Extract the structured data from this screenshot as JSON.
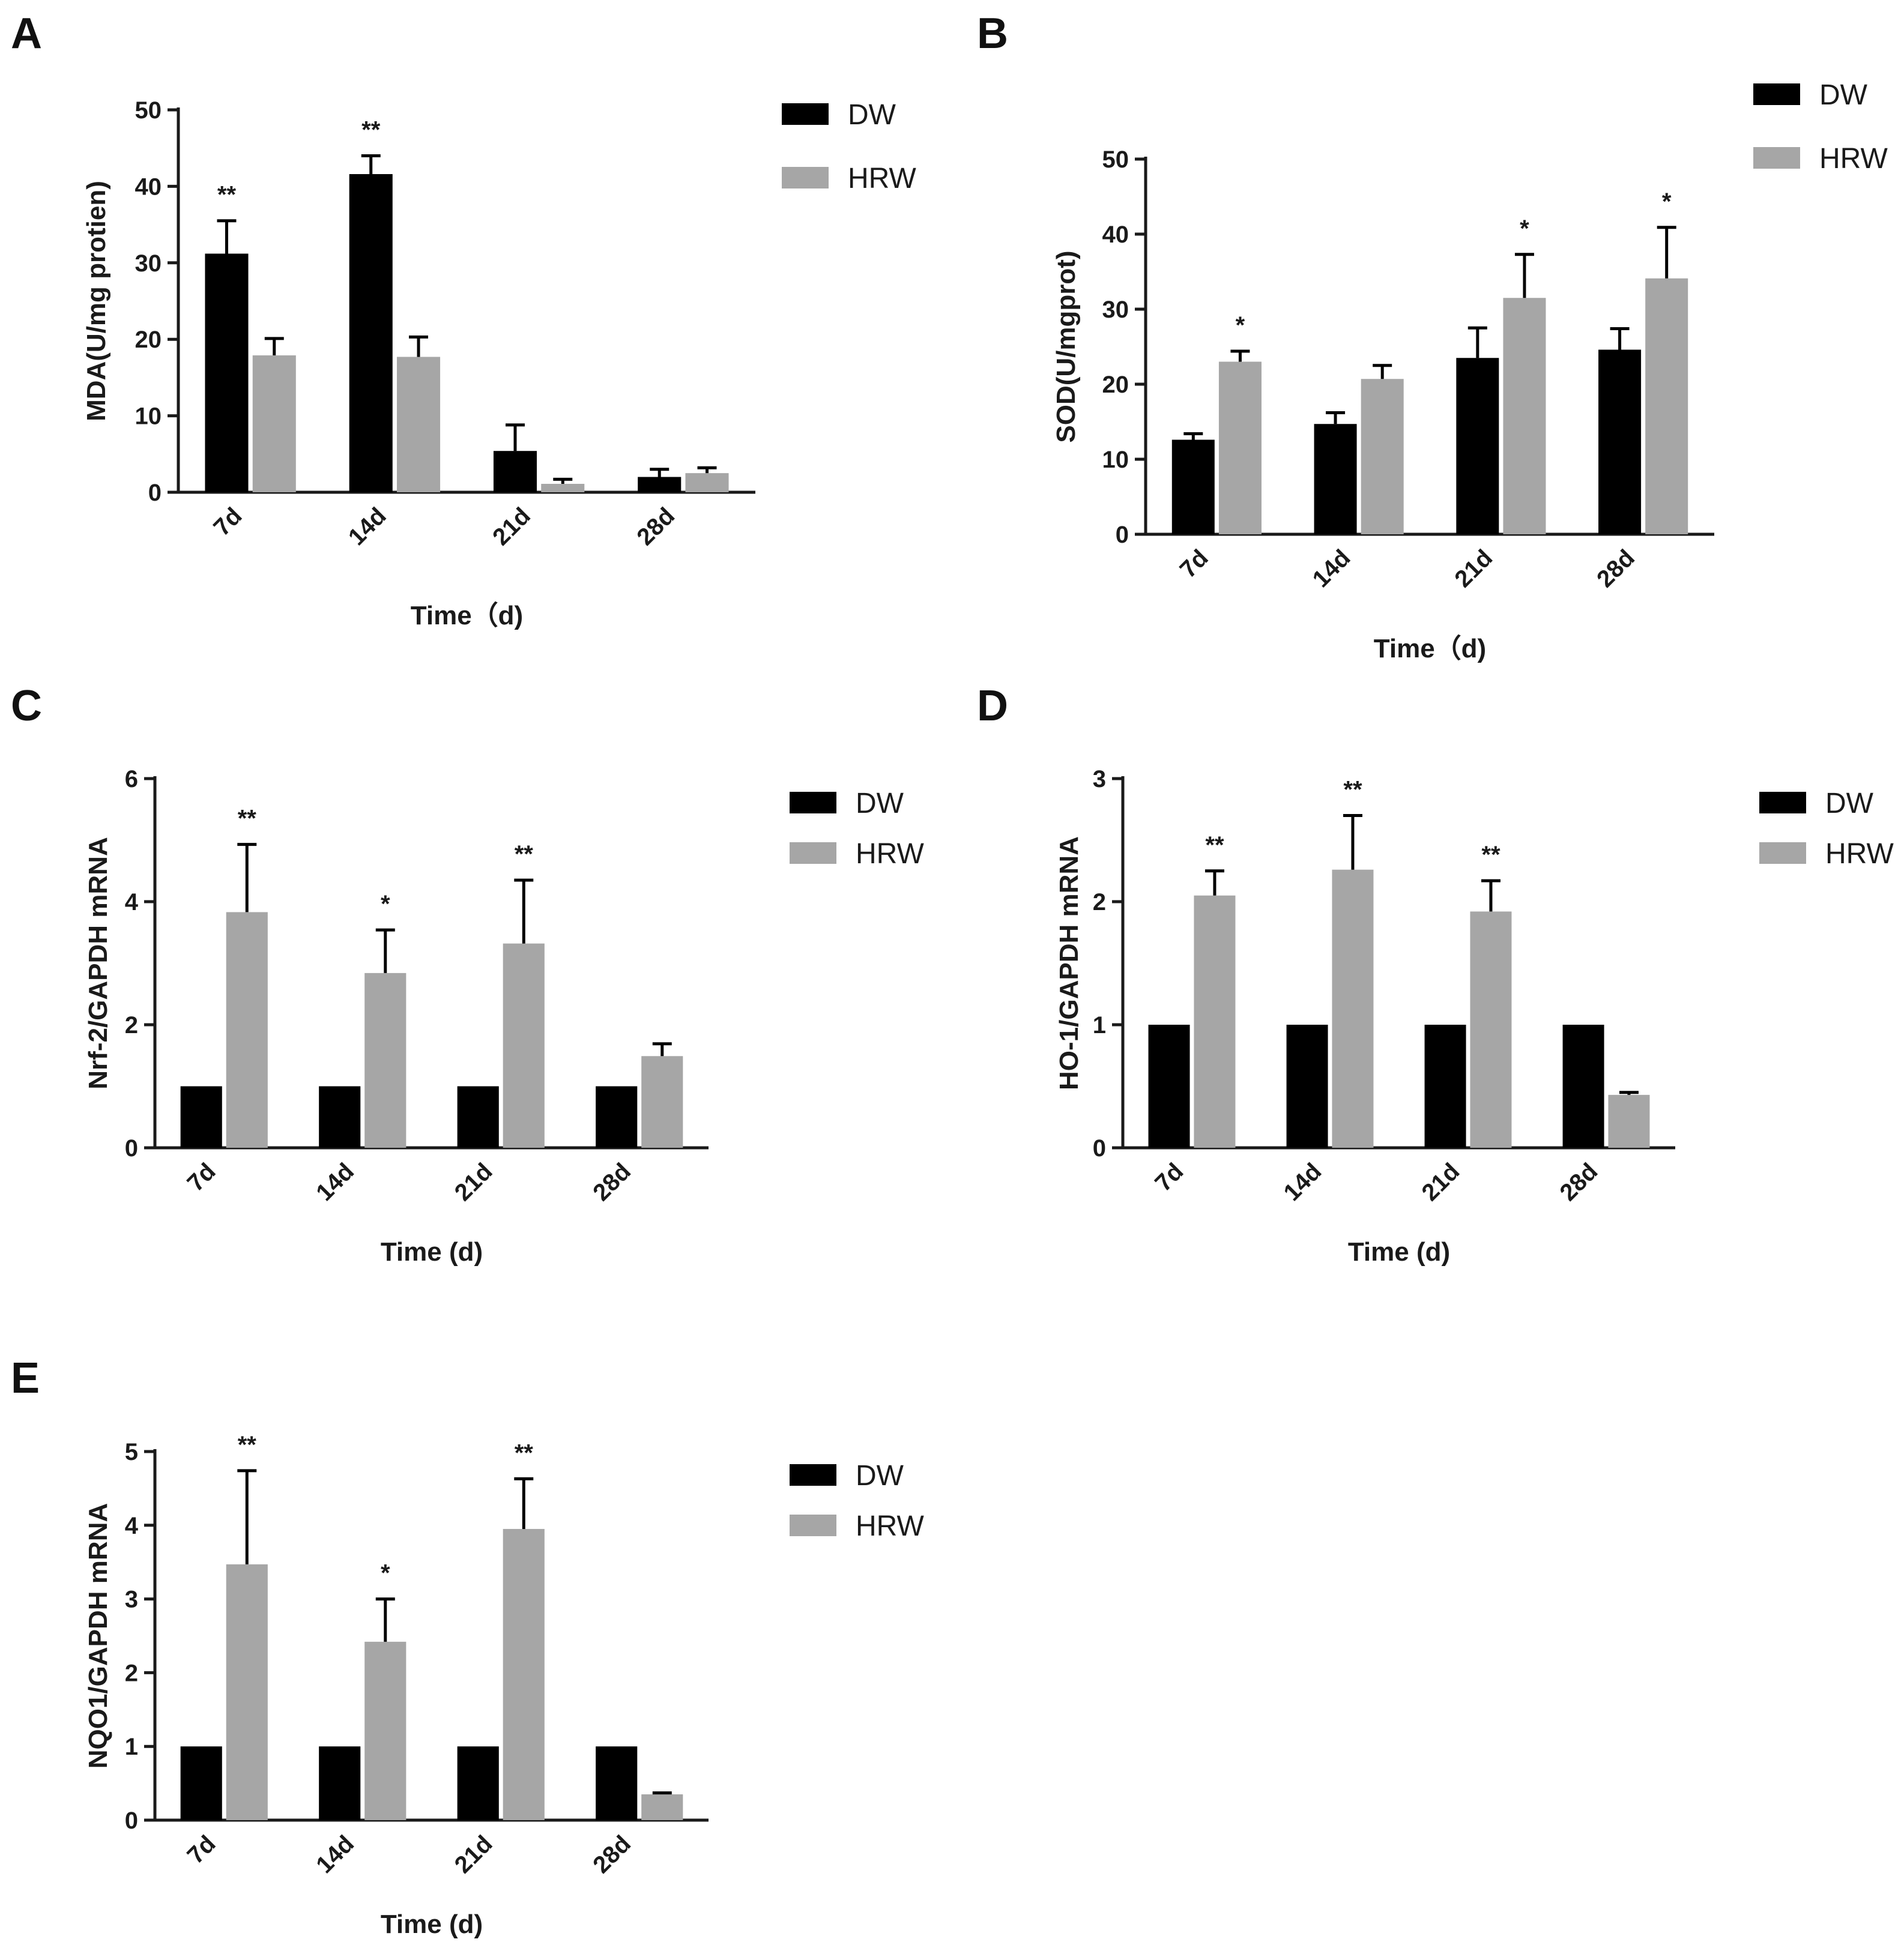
{
  "colors": {
    "DW": "#000000",
    "HRW": "#a6a6a6",
    "axis": "#1a1a1a"
  },
  "chart_data": [
    {
      "panel": "A",
      "type": "bar",
      "categories": [
        "7d",
        "14d",
        "21d",
        "28d"
      ],
      "xlabel": "Time（d)",
      "ylabel": "MDA(U/mg protien)",
      "ylim": [
        0,
        50
      ],
      "yticks": [
        "0",
        "10",
        "20",
        "30",
        "40",
        "50"
      ],
      "legend": [
        "DW",
        "HRW"
      ],
      "legend_position": "top-right",
      "series": [
        {
          "name": "DW",
          "values": [
            31.2,
            41.6,
            5.4,
            2.0
          ],
          "errors": [
            4.3,
            2.4,
            3.4,
            1.0
          ]
        },
        {
          "name": "HRW",
          "values": [
            17.9,
            17.7,
            1.1,
            2.5
          ],
          "errors": [
            2.2,
            2.6,
            0.6,
            0.7
          ]
        }
      ],
      "significance": [
        {
          "category": "7d",
          "series": "DW",
          "label": "**"
        },
        {
          "category": "14d",
          "series": "DW",
          "label": "**"
        }
      ]
    },
    {
      "panel": "B",
      "type": "bar",
      "categories": [
        "7d",
        "14d",
        "21d",
        "28d"
      ],
      "xlabel": "Time（d)",
      "ylabel": "SOD(U/mgprot)",
      "ylim": [
        0,
        50
      ],
      "yticks": [
        "0",
        "10",
        "20",
        "30",
        "40",
        "50"
      ],
      "legend": [
        "DW",
        "HRW"
      ],
      "legend_position": "top-right",
      "series": [
        {
          "name": "DW",
          "values": [
            12.6,
            14.7,
            23.5,
            24.6
          ],
          "errors": [
            0.8,
            1.5,
            4.0,
            2.8
          ]
        },
        {
          "name": "HRW",
          "values": [
            23.0,
            20.7,
            31.5,
            34.1
          ],
          "errors": [
            1.4,
            1.8,
            5.8,
            6.8
          ]
        }
      ],
      "significance": [
        {
          "category": "7d",
          "series": "HRW",
          "label": "*"
        },
        {
          "category": "21d",
          "series": "HRW",
          "label": "*"
        },
        {
          "category": "28d",
          "series": "HRW",
          "label": "*"
        }
      ]
    },
    {
      "panel": "C",
      "type": "bar",
      "categories": [
        "7d",
        "14d",
        "21d",
        "28d"
      ],
      "xlabel": "Time (d)",
      "ylabel": "Nrf-2/GAPDH mRNA",
      "ylim": [
        0,
        6
      ],
      "yticks": [
        "0",
        "2",
        "4",
        "6"
      ],
      "legend": [
        "DW",
        "HRW"
      ],
      "legend_position": "top-right",
      "series": [
        {
          "name": "DW",
          "values": [
            1.0,
            1.0,
            1.0,
            1.0
          ],
          "errors": [
            0,
            0,
            0,
            0
          ]
        },
        {
          "name": "HRW",
          "values": [
            3.83,
            2.84,
            3.32,
            1.49
          ],
          "errors": [
            1.1,
            0.7,
            1.03,
            0.2
          ]
        }
      ],
      "significance": [
        {
          "category": "7d",
          "series": "HRW",
          "label": "**"
        },
        {
          "category": "14d",
          "series": "HRW",
          "label": "*"
        },
        {
          "category": "21d",
          "series": "HRW",
          "label": "**"
        }
      ]
    },
    {
      "panel": "D",
      "type": "bar",
      "categories": [
        "7d",
        "14d",
        "21d",
        "28d"
      ],
      "xlabel": "Time (d)",
      "ylabel": "HO-1/GAPDH mRNA",
      "ylim": [
        0,
        3
      ],
      "yticks": [
        "0",
        "1",
        "2",
        "3"
      ],
      "legend": [
        "DW",
        "HRW"
      ],
      "legend_position": "top-right",
      "series": [
        {
          "name": "DW",
          "values": [
            1.0,
            1.0,
            1.0,
            1.0
          ],
          "errors": [
            0,
            0,
            0,
            0
          ]
        },
        {
          "name": "HRW",
          "values": [
            2.05,
            2.26,
            1.92,
            0.43
          ],
          "errors": [
            0.2,
            0.44,
            0.25,
            0.02
          ]
        }
      ],
      "significance": [
        {
          "category": "7d",
          "series": "HRW",
          "label": "**"
        },
        {
          "category": "14d",
          "series": "HRW",
          "label": "**"
        },
        {
          "category": "21d",
          "series": "HRW",
          "label": "**"
        }
      ]
    },
    {
      "panel": "E",
      "type": "bar",
      "categories": [
        "7d",
        "14d",
        "21d",
        "28d"
      ],
      "xlabel": "Time (d)",
      "ylabel": "NQO1/GAPDH mRNA",
      "ylim": [
        0,
        5
      ],
      "yticks": [
        "0",
        "1",
        "2",
        "3",
        "4",
        "5"
      ],
      "legend": [
        "DW",
        "HRW"
      ],
      "legend_position": "top-right",
      "series": [
        {
          "name": "DW",
          "values": [
            1.0,
            1.0,
            1.0,
            1.0
          ],
          "errors": [
            0,
            0,
            0,
            0
          ]
        },
        {
          "name": "HRW",
          "values": [
            3.47,
            2.42,
            3.95,
            0.35
          ],
          "errors": [
            1.27,
            0.58,
            0.68,
            0.02
          ]
        }
      ],
      "significance": [
        {
          "category": "7d",
          "series": "HRW",
          "label": "**"
        },
        {
          "category": "14d",
          "series": "HRW",
          "label": "*"
        },
        {
          "category": "21d",
          "series": "HRW",
          "label": "**"
        }
      ]
    }
  ]
}
